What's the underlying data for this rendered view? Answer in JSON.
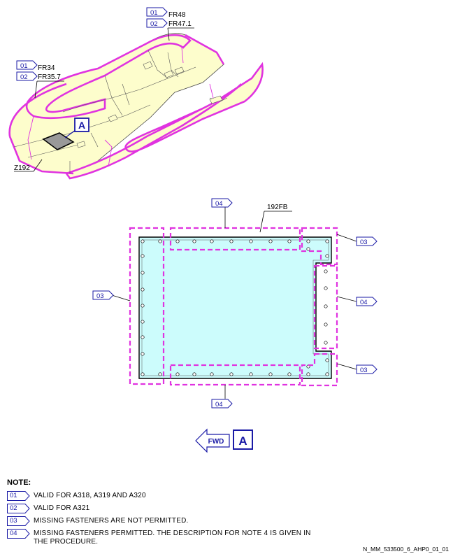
{
  "top_view": {
    "zone_label": "Z192",
    "callouts_aft": [
      {
        "tag": "01",
        "text": "FR48"
      },
      {
        "tag": "02",
        "text": "FR47.1"
      }
    ],
    "callouts_fwd": [
      {
        "tag": "01",
        "text": "FR34"
      },
      {
        "tag": "02",
        "text": "FR35.7"
      }
    ],
    "view_marker": "A"
  },
  "detail_view": {
    "panel_label": "192FB",
    "zone_tags": {
      "top": "04",
      "left": "03",
      "top_right": "03",
      "right": "04",
      "bottom_right": "03",
      "bottom": "04"
    },
    "fwd_arrow": "FWD",
    "view_marker": "A"
  },
  "colors": {
    "structure_fill": "#fdfdcc",
    "outline_magenta": "#e033e0",
    "panel_fill": "#ccfcfc",
    "tag_blue": "#1a1aa6"
  },
  "notes": {
    "heading": "NOTE:",
    "items": [
      {
        "tag": "01",
        "text": "VALID FOR A318, A319 AND A320"
      },
      {
        "tag": "02",
        "text": "VALID FOR A321"
      },
      {
        "tag": "03",
        "text": "MISSING FASTENERS ARE NOT PERMITTED."
      },
      {
        "tag": "04",
        "text": "MISSING FASTENERS PERMITTED. THE DESCRIPTION FOR NOTE 4 IS GIVEN IN THE PROCEDURE."
      }
    ]
  },
  "reference": "N_MM_533500_6_AHP0_01_01"
}
